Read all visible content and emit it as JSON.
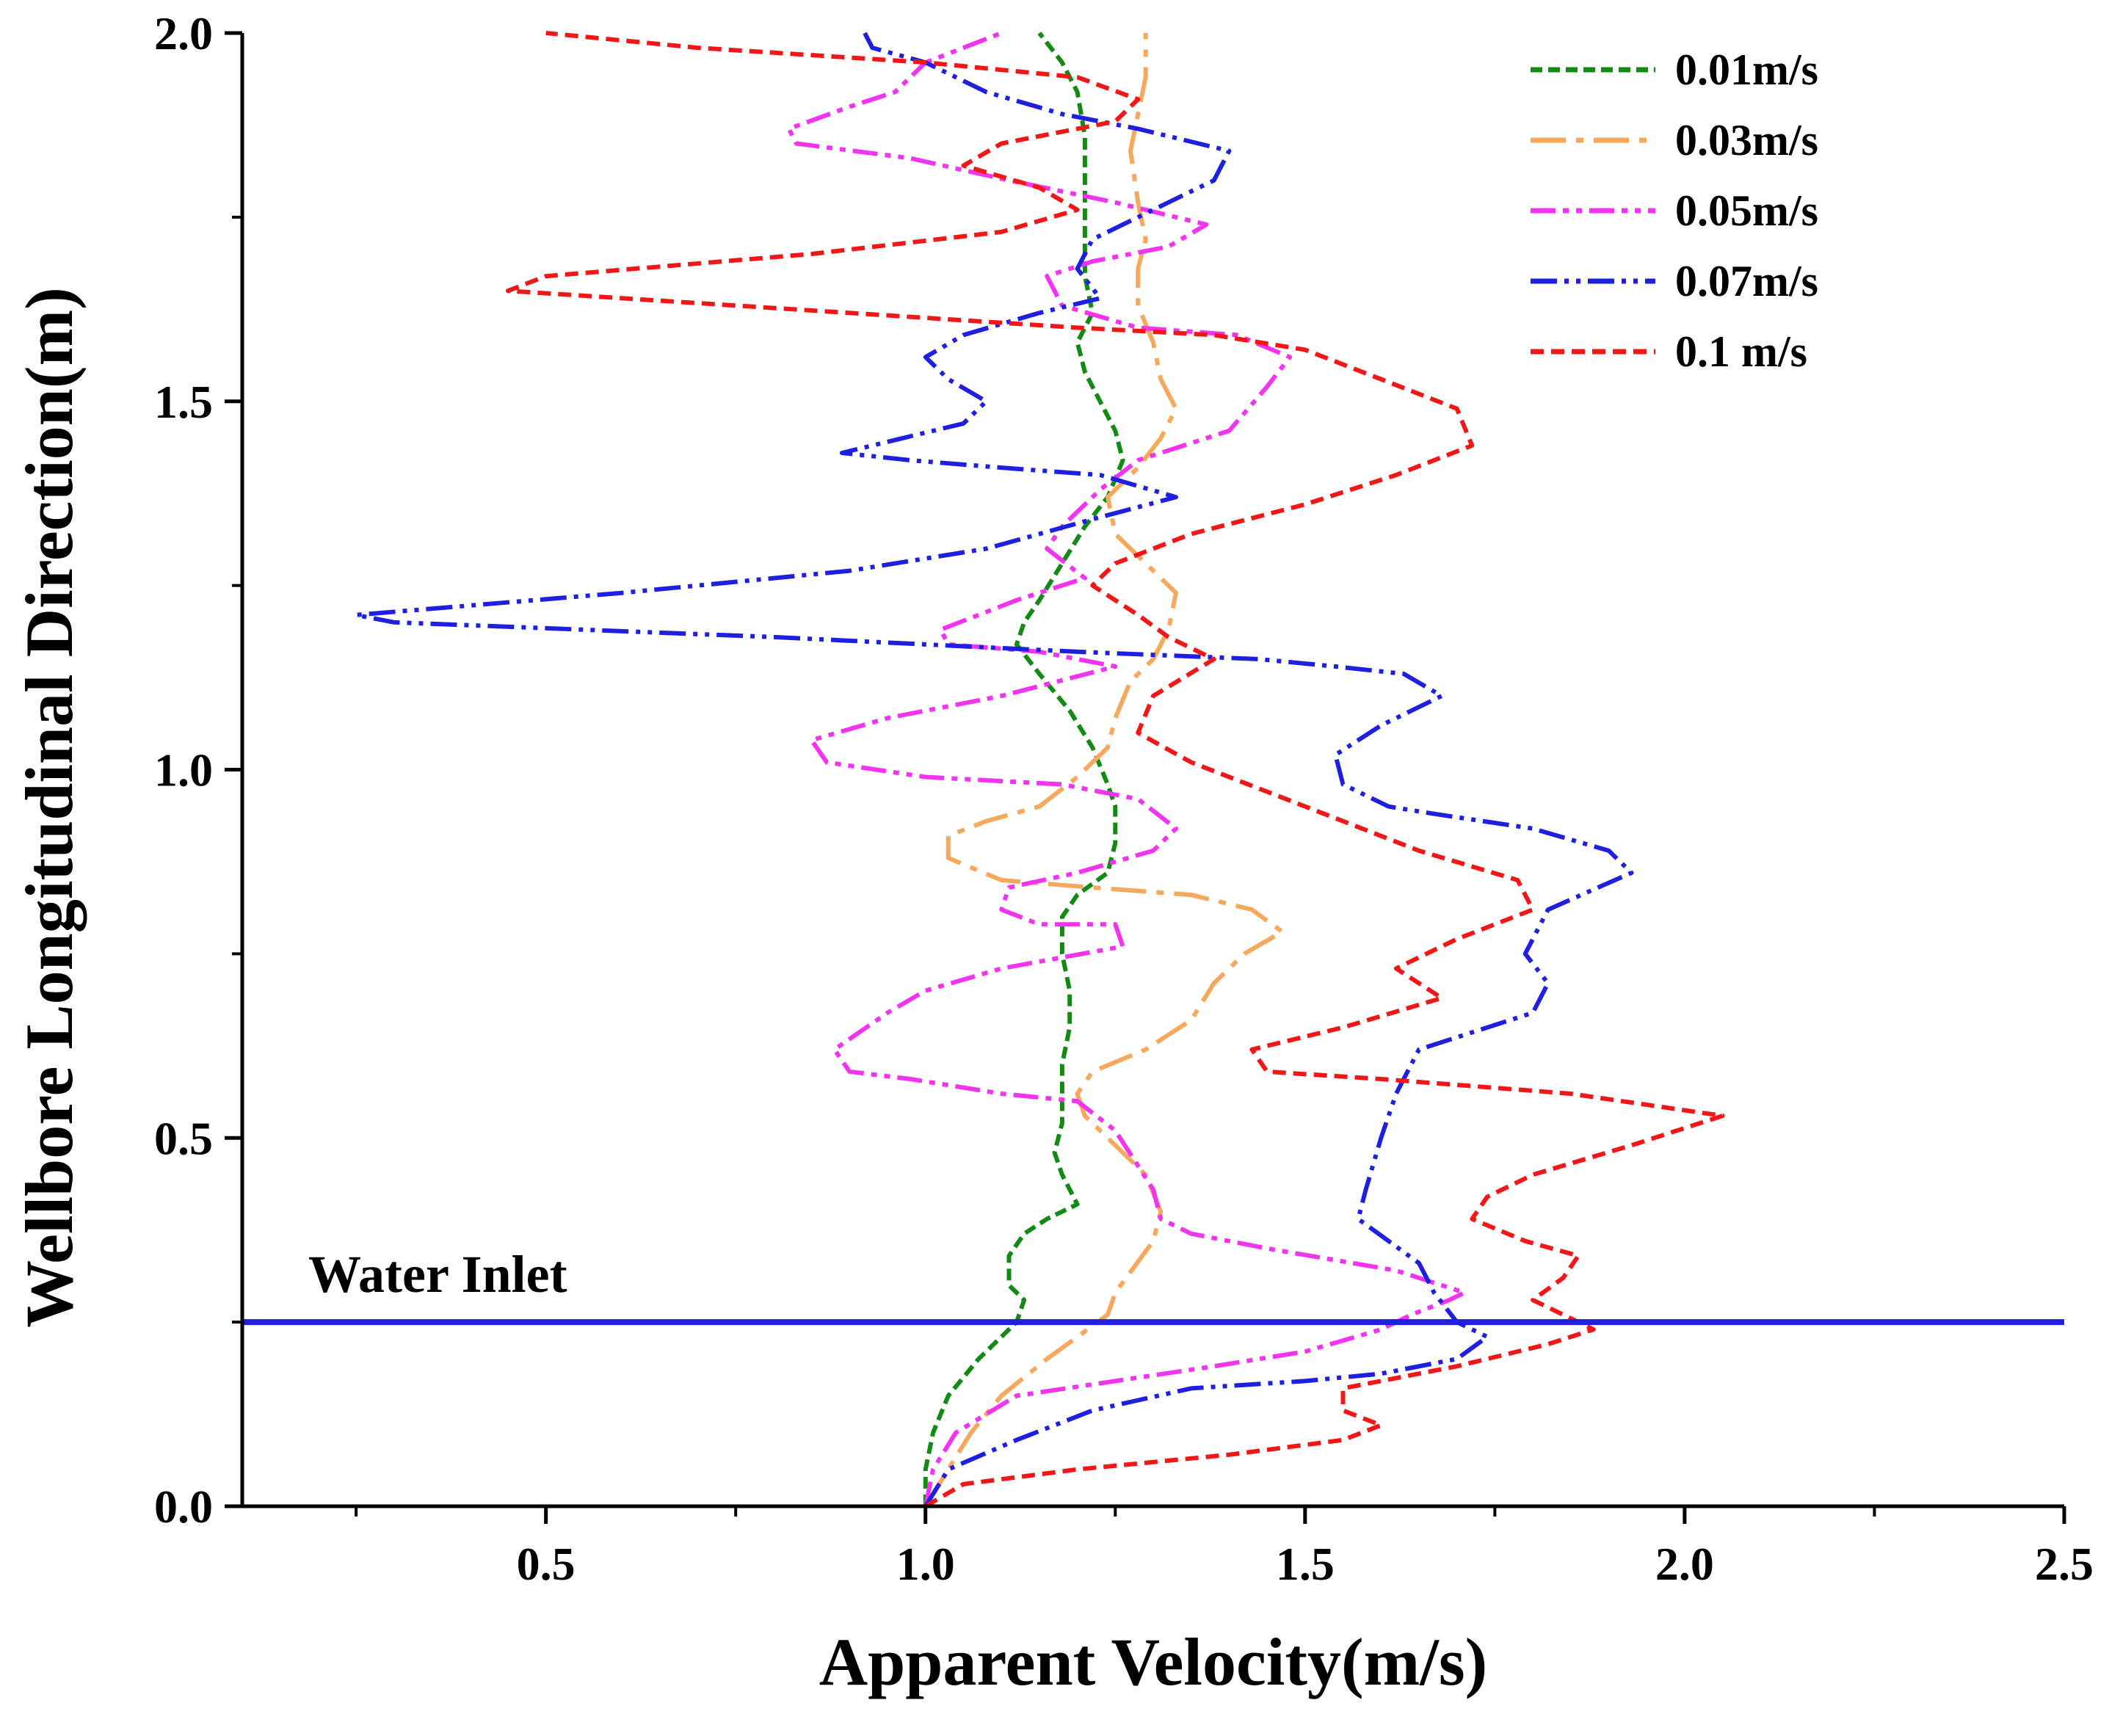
{
  "chart_data": {
    "type": "line",
    "title": "",
    "xlabel": "Apparent Velocity(m/s)",
    "ylabel": "Wellbore Longitudinal Direction(m)",
    "xlim": [
      0.1,
      2.5
    ],
    "ylim": [
      0.0,
      2.0
    ],
    "x_ticks": [
      "0.5",
      "1.0",
      "1.5",
      "2.0",
      "2.5"
    ],
    "x_tick_values": [
      0.5,
      1.0,
      1.5,
      2.0,
      2.5
    ],
    "y_ticks": [
      "0.0",
      "0.5",
      "1.0",
      "1.5",
      "2.0"
    ],
    "y_tick_values": [
      0.0,
      0.5,
      1.0,
      1.5,
      2.0
    ],
    "legend_position": "top-right",
    "annotation": {
      "label": "Water Inlet",
      "y": 0.25,
      "color": "#1f1fe0"
    },
    "series": [
      {
        "name": "0.01m/s",
        "color": "#138a13",
        "dash": "16 8",
        "points": [
          [
            1.0,
            0.0
          ],
          [
            1.0,
            0.05
          ],
          [
            1.01,
            0.1
          ],
          [
            1.03,
            0.15
          ],
          [
            1.07,
            0.2
          ],
          [
            1.12,
            0.25
          ],
          [
            1.13,
            0.28
          ],
          [
            1.11,
            0.3
          ],
          [
            1.11,
            0.34
          ],
          [
            1.13,
            0.37
          ],
          [
            1.16,
            0.39
          ],
          [
            1.2,
            0.41
          ],
          [
            1.18,
            0.45
          ],
          [
            1.17,
            0.48
          ],
          [
            1.18,
            0.52
          ],
          [
            1.18,
            0.56
          ],
          [
            1.18,
            0.6
          ],
          [
            1.19,
            0.65
          ],
          [
            1.19,
            0.7
          ],
          [
            1.18,
            0.75
          ],
          [
            1.18,
            0.8
          ],
          [
            1.2,
            0.83
          ],
          [
            1.24,
            0.86
          ],
          [
            1.25,
            0.9
          ],
          [
            1.25,
            0.95
          ],
          [
            1.24,
            0.98
          ],
          [
            1.22,
            1.03
          ],
          [
            1.19,
            1.08
          ],
          [
            1.15,
            1.13
          ],
          [
            1.12,
            1.17
          ],
          [
            1.13,
            1.2
          ],
          [
            1.15,
            1.23
          ],
          [
            1.18,
            1.28
          ],
          [
            1.21,
            1.33
          ],
          [
            1.24,
            1.37
          ],
          [
            1.26,
            1.42
          ],
          [
            1.25,
            1.46
          ],
          [
            1.23,
            1.5
          ],
          [
            1.21,
            1.54
          ],
          [
            1.2,
            1.58
          ],
          [
            1.22,
            1.62
          ],
          [
            1.21,
            1.67
          ],
          [
            1.21,
            1.73
          ],
          [
            1.21,
            1.8
          ],
          [
            1.21,
            1.86
          ],
          [
            1.2,
            1.92
          ],
          [
            1.18,
            1.96
          ],
          [
            1.15,
            2.0
          ]
        ]
      },
      {
        "name": "0.03m/s",
        "color": "#f6a85d",
        "dash": "48 14 10 14",
        "points": [
          [
            1.0,
            0.0
          ],
          [
            1.03,
            0.05
          ],
          [
            1.06,
            0.1
          ],
          [
            1.1,
            0.15
          ],
          [
            1.16,
            0.2
          ],
          [
            1.2,
            0.23
          ],
          [
            1.24,
            0.26
          ],
          [
            1.25,
            0.29
          ],
          [
            1.3,
            0.36
          ],
          [
            1.31,
            0.4
          ],
          [
            1.29,
            0.45
          ],
          [
            1.25,
            0.49
          ],
          [
            1.21,
            0.53
          ],
          [
            1.2,
            0.56
          ],
          [
            1.22,
            0.59
          ],
          [
            1.29,
            0.62
          ],
          [
            1.35,
            0.66
          ],
          [
            1.38,
            0.71
          ],
          [
            1.42,
            0.75
          ],
          [
            1.47,
            0.78
          ],
          [
            1.43,
            0.81
          ],
          [
            1.35,
            0.83
          ],
          [
            1.22,
            0.84
          ],
          [
            1.1,
            0.85
          ],
          [
            1.03,
            0.88
          ],
          [
            1.03,
            0.91
          ],
          [
            1.08,
            0.93
          ],
          [
            1.15,
            0.95
          ],
          [
            1.2,
            0.99
          ],
          [
            1.24,
            1.03
          ],
          [
            1.25,
            1.07
          ],
          [
            1.27,
            1.12
          ],
          [
            1.3,
            1.15
          ],
          [
            1.32,
            1.19
          ],
          [
            1.33,
            1.24
          ],
          [
            1.29,
            1.28
          ],
          [
            1.25,
            1.32
          ],
          [
            1.24,
            1.37
          ],
          [
            1.28,
            1.41
          ],
          [
            1.31,
            1.45
          ],
          [
            1.33,
            1.49
          ],
          [
            1.31,
            1.53
          ],
          [
            1.3,
            1.58
          ],
          [
            1.28,
            1.63
          ],
          [
            1.28,
            1.68
          ],
          [
            1.29,
            1.72
          ],
          [
            1.28,
            1.77
          ],
          [
            1.27,
            1.84
          ],
          [
            1.28,
            1.89
          ],
          [
            1.29,
            1.94
          ],
          [
            1.29,
            2.0
          ]
        ]
      },
      {
        "name": "0.05m/s",
        "color": "#f233ef",
        "dash": "34 10 8 10 8 10",
        "points": [
          [
            1.0,
            0.0
          ],
          [
            1.01,
            0.05
          ],
          [
            1.04,
            0.1
          ],
          [
            1.12,
            0.15
          ],
          [
            1.25,
            0.17
          ],
          [
            1.38,
            0.19
          ],
          [
            1.5,
            0.21
          ],
          [
            1.6,
            0.24
          ],
          [
            1.64,
            0.26
          ],
          [
            1.69,
            0.28
          ],
          [
            1.71,
            0.29
          ],
          [
            1.62,
            0.32
          ],
          [
            1.45,
            0.35
          ],
          [
            1.35,
            0.37
          ],
          [
            1.31,
            0.39
          ],
          [
            1.3,
            0.43
          ],
          [
            1.25,
            0.51
          ],
          [
            1.2,
            0.55
          ],
          [
            1.1,
            0.56
          ],
          [
            0.98,
            0.58
          ],
          [
            0.9,
            0.59
          ],
          [
            0.88,
            0.62
          ],
          [
            0.95,
            0.67
          ],
          [
            1.0,
            0.7
          ],
          [
            1.1,
            0.73
          ],
          [
            1.26,
            0.76
          ],
          [
            1.25,
            0.79
          ],
          [
            1.15,
            0.79
          ],
          [
            1.1,
            0.81
          ],
          [
            1.11,
            0.84
          ],
          [
            1.2,
            0.86
          ],
          [
            1.3,
            0.89
          ],
          [
            1.33,
            0.92
          ],
          [
            1.28,
            0.96
          ],
          [
            1.18,
            0.98
          ],
          [
            1.0,
            0.99
          ],
          [
            0.87,
            1.01
          ],
          [
            0.85,
            1.04
          ],
          [
            0.95,
            1.07
          ],
          [
            1.1,
            1.1
          ],
          [
            1.25,
            1.14
          ],
          [
            1.15,
            1.16
          ],
          [
            1.03,
            1.17
          ],
          [
            1.02,
            1.19
          ],
          [
            1.12,
            1.23
          ],
          [
            1.21,
            1.26
          ],
          [
            1.16,
            1.3
          ],
          [
            1.18,
            1.33
          ],
          [
            1.23,
            1.38
          ],
          [
            1.28,
            1.42
          ],
          [
            1.4,
            1.46
          ],
          [
            1.45,
            1.52
          ],
          [
            1.48,
            1.56
          ],
          [
            1.41,
            1.59
          ],
          [
            1.28,
            1.6
          ],
          [
            1.18,
            1.63
          ],
          [
            1.16,
            1.67
          ],
          [
            1.22,
            1.69
          ],
          [
            1.32,
            1.71
          ],
          [
            1.37,
            1.74
          ],
          [
            1.25,
            1.77
          ],
          [
            1.11,
            1.8
          ],
          [
            0.98,
            1.83
          ],
          [
            0.83,
            1.85
          ],
          [
            0.82,
            1.87
          ],
          [
            0.9,
            1.9
          ],
          [
            0.96,
            1.92
          ],
          [
            1.0,
            1.96
          ],
          [
            1.05,
            1.98
          ],
          [
            1.1,
            2.0
          ]
        ]
      },
      {
        "name": "0.07m/s",
        "color": "#1f1fe0",
        "dash": "36 10 6 10 6 10",
        "points": [
          [
            1.0,
            0.0
          ],
          [
            1.03,
            0.05
          ],
          [
            1.12,
            0.09
          ],
          [
            1.22,
            0.13
          ],
          [
            1.35,
            0.16
          ],
          [
            1.5,
            0.17
          ],
          [
            1.6,
            0.18
          ],
          [
            1.7,
            0.2
          ],
          [
            1.74,
            0.23
          ],
          [
            1.7,
            0.25
          ],
          [
            1.67,
            0.29
          ],
          [
            1.65,
            0.33
          ],
          [
            1.61,
            0.36
          ],
          [
            1.57,
            0.39
          ],
          [
            1.58,
            0.43
          ],
          [
            1.6,
            0.5
          ],
          [
            1.62,
            0.56
          ],
          [
            1.65,
            0.62
          ],
          [
            1.71,
            0.64
          ],
          [
            1.8,
            0.67
          ],
          [
            1.82,
            0.71
          ],
          [
            1.79,
            0.75
          ],
          [
            1.82,
            0.81
          ],
          [
            1.93,
            0.86
          ],
          [
            1.9,
            0.89
          ],
          [
            1.8,
            0.92
          ],
          [
            1.67,
            0.94
          ],
          [
            1.61,
            0.95
          ],
          [
            1.55,
            0.98
          ],
          [
            1.54,
            1.02
          ],
          [
            1.6,
            1.06
          ],
          [
            1.68,
            1.1
          ],
          [
            1.63,
            1.13
          ],
          [
            1.54,
            1.14
          ],
          [
            1.44,
            1.15
          ],
          [
            1.2,
            1.16
          ],
          [
            0.8,
            1.18
          ],
          [
            0.3,
            1.2
          ],
          [
            0.25,
            1.21
          ],
          [
            0.6,
            1.24
          ],
          [
            0.9,
            1.27
          ],
          [
            1.08,
            1.3
          ],
          [
            1.22,
            1.34
          ],
          [
            1.33,
            1.37
          ],
          [
            1.23,
            1.4
          ],
          [
            1.1,
            1.41
          ],
          [
            0.98,
            1.42
          ],
          [
            0.89,
            1.43
          ],
          [
            0.97,
            1.45
          ],
          [
            1.05,
            1.47
          ],
          [
            1.08,
            1.5
          ],
          [
            1.03,
            1.53
          ],
          [
            1.0,
            1.56
          ],
          [
            1.05,
            1.59
          ],
          [
            1.15,
            1.62
          ],
          [
            1.23,
            1.64
          ],
          [
            1.2,
            1.68
          ],
          [
            1.22,
            1.72
          ],
          [
            1.3,
            1.76
          ],
          [
            1.38,
            1.8
          ],
          [
            1.4,
            1.84
          ],
          [
            1.28,
            1.87
          ],
          [
            1.18,
            1.89
          ],
          [
            1.08,
            1.92
          ],
          [
            1.0,
            1.96
          ],
          [
            0.93,
            1.98
          ],
          [
            0.92,
            2.0
          ]
        ]
      },
      {
        "name": "0.1  m/s",
        "color": "#f21616",
        "dash": "18 10",
        "points": [
          [
            1.0,
            0.0
          ],
          [
            1.05,
            0.03
          ],
          [
            1.2,
            0.05
          ],
          [
            1.4,
            0.07
          ],
          [
            1.55,
            0.09
          ],
          [
            1.6,
            0.11
          ],
          [
            1.55,
            0.13
          ],
          [
            1.55,
            0.16
          ],
          [
            1.7,
            0.19
          ],
          [
            1.82,
            0.22
          ],
          [
            1.88,
            0.24
          ],
          [
            1.84,
            0.26
          ],
          [
            1.8,
            0.28
          ],
          [
            1.84,
            0.31
          ],
          [
            1.86,
            0.34
          ],
          [
            1.79,
            0.36
          ],
          [
            1.72,
            0.39
          ],
          [
            1.74,
            0.42
          ],
          [
            1.8,
            0.45
          ],
          [
            1.93,
            0.49
          ],
          [
            2.05,
            0.53
          ],
          [
            1.85,
            0.56
          ],
          [
            1.6,
            0.58
          ],
          [
            1.45,
            0.59
          ],
          [
            1.43,
            0.62
          ],
          [
            1.55,
            0.65
          ],
          [
            1.68,
            0.69
          ],
          [
            1.62,
            0.73
          ],
          [
            1.7,
            0.77
          ],
          [
            1.8,
            0.81
          ],
          [
            1.78,
            0.85
          ],
          [
            1.65,
            0.89
          ],
          [
            1.55,
            0.93
          ],
          [
            1.45,
            0.97
          ],
          [
            1.35,
            1.01
          ],
          [
            1.28,
            1.05
          ],
          [
            1.3,
            1.1
          ],
          [
            1.38,
            1.15
          ],
          [
            1.32,
            1.18
          ],
          [
            1.28,
            1.21
          ],
          [
            1.22,
            1.25
          ],
          [
            1.25,
            1.28
          ],
          [
            1.35,
            1.32
          ],
          [
            1.5,
            1.36
          ],
          [
            1.62,
            1.4
          ],
          [
            1.72,
            1.44
          ],
          [
            1.7,
            1.49
          ],
          [
            1.6,
            1.53
          ],
          [
            1.5,
            1.57
          ],
          [
            1.38,
            1.59
          ],
          [
            1.2,
            1.6
          ],
          [
            0.9,
            1.62
          ],
          [
            0.45,
            1.65
          ],
          [
            0.5,
            1.67
          ],
          [
            0.85,
            1.7
          ],
          [
            1.1,
            1.73
          ],
          [
            1.2,
            1.76
          ],
          [
            1.15,
            1.79
          ],
          [
            1.05,
            1.82
          ],
          [
            1.1,
            1.85
          ],
          [
            1.25,
            1.88
          ],
          [
            1.28,
            1.91
          ],
          [
            1.2,
            1.94
          ],
          [
            1.0,
            1.96
          ],
          [
            0.7,
            1.98
          ],
          [
            0.5,
            2.0
          ]
        ]
      }
    ]
  }
}
